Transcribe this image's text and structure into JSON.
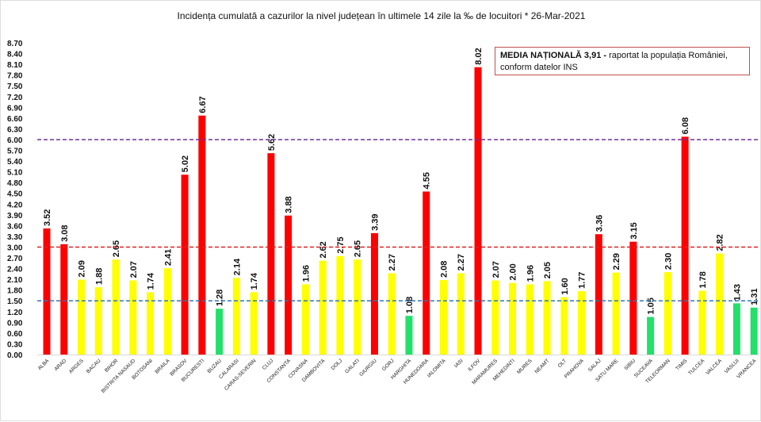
{
  "chart_data": {
    "type": "bar",
    "title": "Incidența cumulată a cazurilor la nivel județean în ultimele 14 zile   la ‰ de locuitori  * 26-Mar-2021",
    "xlabel": "",
    "ylabel": "",
    "ylim": [
      0,
      8.7
    ],
    "ytick_step": 0.3,
    "grid": false,
    "categories": [
      "ALBA",
      "ARAD",
      "ARGES",
      "BACAU",
      "BIHOR",
      "BISTRITA NASAUD",
      "BOTOSANI",
      "BRAILA",
      "BRASOV",
      "BUCURESTI",
      "BUZAU",
      "CALARASI",
      "CARAS-SEVERIN",
      "CLUJ",
      "CONSTANTA",
      "COVASNA",
      "DAMBOVITA",
      "DOLJ",
      "GALATI",
      "GIURGIU",
      "GORJ",
      "HARGHITA",
      "HUNEDOARA",
      "IALOMITA",
      "IASI",
      "ILFOV",
      "MARAMURES",
      "MEHEDINTI",
      "MURES",
      "NEAMT",
      "OLT",
      "PRAHOVA",
      "SALAJ",
      "SATU MARE",
      "SIBIU",
      "SUCEAVA",
      "TELEORMAN",
      "TIMIS",
      "TULCEA",
      "VALCEA",
      "VASLUI",
      "VRANCEA"
    ],
    "values": [
      3.52,
      3.08,
      2.09,
      1.88,
      2.65,
      2.07,
      1.74,
      2.41,
      5.02,
      6.67,
      1.28,
      2.14,
      1.74,
      5.62,
      3.88,
      1.96,
      2.62,
      2.75,
      2.65,
      3.39,
      2.27,
      1.08,
      4.55,
      2.08,
      2.27,
      8.02,
      2.07,
      2.0,
      1.96,
      2.05,
      1.6,
      1.77,
      3.36,
      2.29,
      3.15,
      1.05,
      2.3,
      6.08,
      1.78,
      2.82,
      1.43,
      1.31
    ],
    "reference_lines": [
      {
        "value": 6.0,
        "color": "#7030a0"
      },
      {
        "value": 3.0,
        "color": "#e02020"
      },
      {
        "value": 1.5,
        "color": "#2e75b6"
      }
    ],
    "bar_colors": {
      "high": "#ff0000",
      "medium": "#ffff00",
      "low": "#22e06a"
    },
    "annotation": {
      "bold": "MEDIA NAȚIONALĂ 3,91 -",
      "text": " raportat la populația României, conform datelor INS"
    }
  }
}
